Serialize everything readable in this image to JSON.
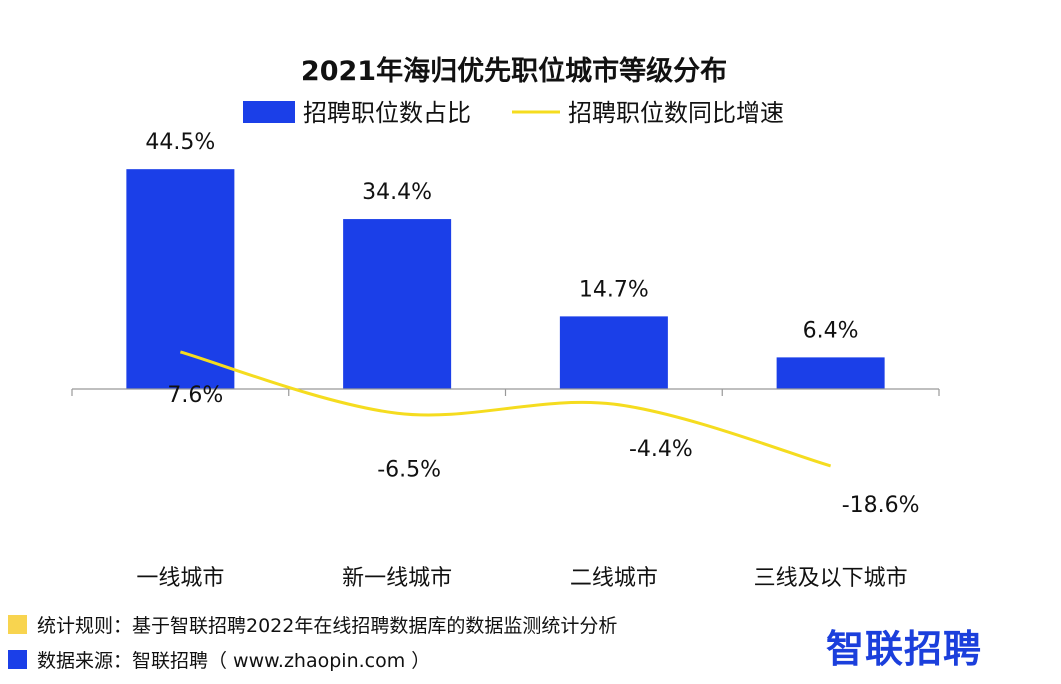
{
  "colors": {
    "bar": "#1b3fe8",
    "line": "#f5dc1f",
    "rule_swatch": "#f8d44f",
    "source_swatch": "#1b3fe8",
    "brand": "#1b3fdc"
  },
  "chart_data": {
    "type": "bar",
    "title": "2021年海归优先职位城市等级分布",
    "categories": [
      "一线城市",
      "新一线城市",
      "二线城市",
      "三线及以下城市"
    ],
    "series": [
      {
        "name": "招聘职位数占比",
        "type": "bar",
        "values": [
          44.5,
          34.4,
          14.7,
          6.4
        ],
        "labels": [
          "44.5%",
          "34.4%",
          "14.7%",
          "6.4%"
        ]
      },
      {
        "name": "招聘职位数同比增速",
        "type": "line",
        "values": [
          7.6,
          -6.5,
          -4.4,
          -18.6
        ],
        "labels": [
          "7.6%",
          "-6.5%",
          "-4.4%",
          "-18.6%"
        ]
      }
    ],
    "legend_position": "top-center",
    "grid": false
  },
  "footer": {
    "rule_text": "统计规则：基于智联招聘2022年在线招聘数据库的数据监测统计分析",
    "source_text": "数据来源：智联招聘（ www.zhaopin.com ）",
    "logo_text": "智联招聘"
  }
}
